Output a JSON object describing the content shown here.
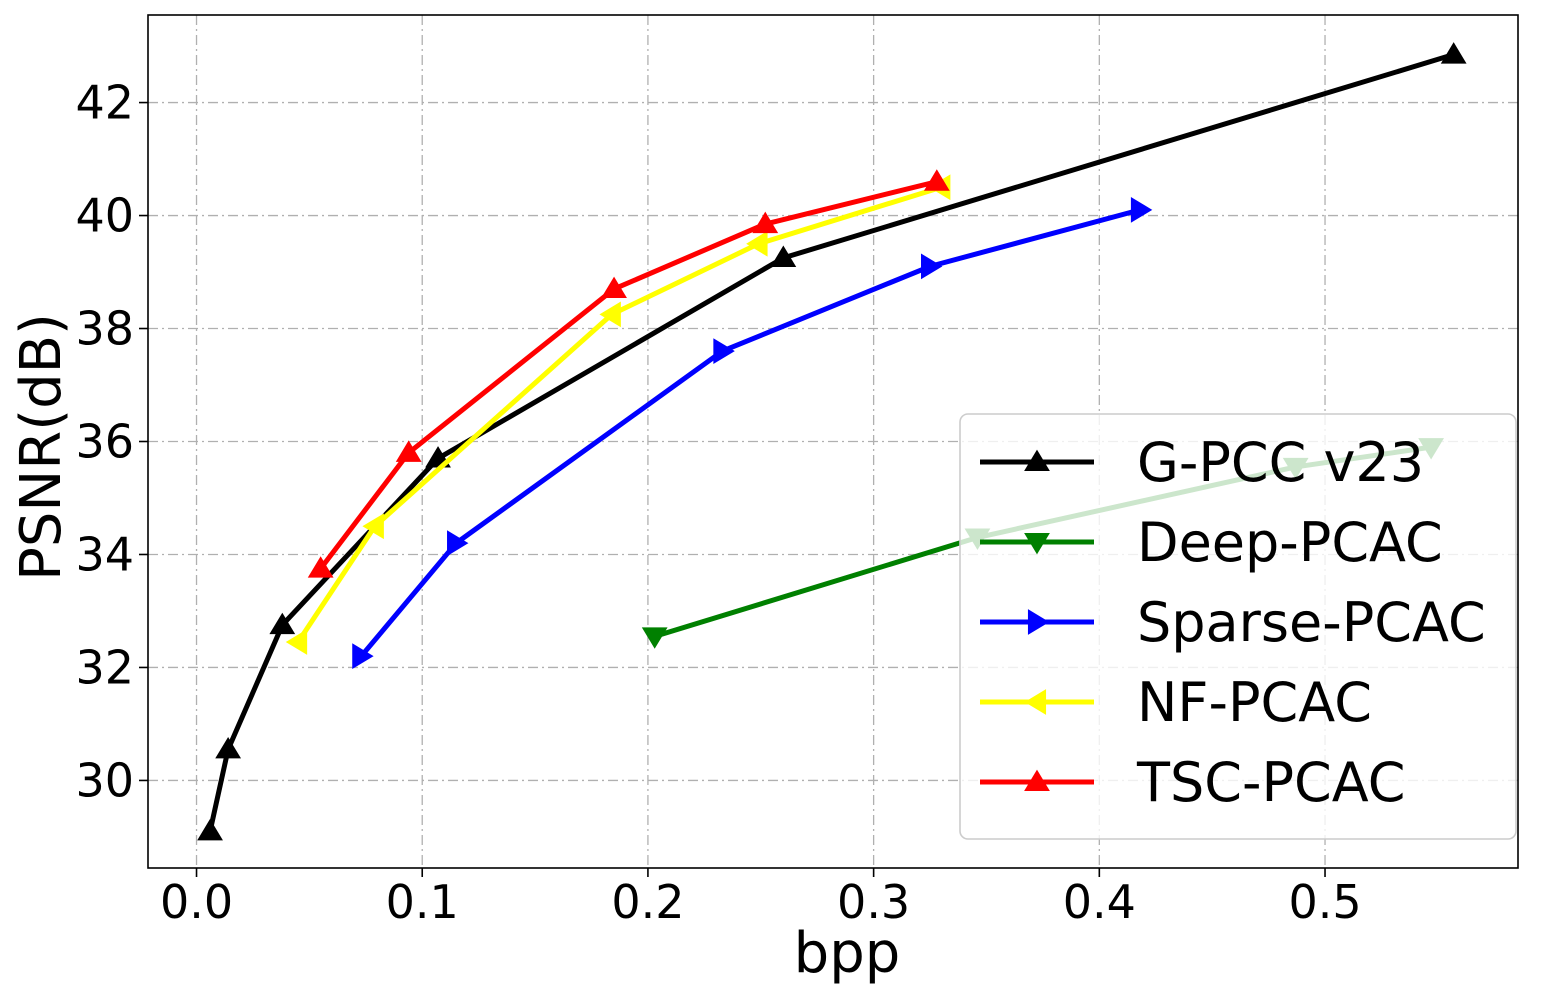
{
  "chart_data": {
    "type": "line",
    "title": "",
    "xlabel": "bpp",
    "ylabel": "PSNR(dB)",
    "xlim": [
      -0.0215,
      0.5855
    ],
    "ylim": [
      28.45,
      43.55
    ],
    "xticks": [
      0.0,
      0.1,
      0.2,
      0.3,
      0.4,
      0.5
    ],
    "xtick_labels": [
      "0.0",
      "0.1",
      "0.2",
      "0.3",
      "0.4",
      "0.5"
    ],
    "yticks": [
      30,
      32,
      34,
      36,
      38,
      40,
      42
    ],
    "ytick_labels": [
      "30",
      "32",
      "34",
      "36",
      "38",
      "40",
      "42"
    ],
    "grid": true,
    "legend_position": "lower-right",
    "series": [
      {
        "name": "G-PCC v23",
        "color": "#000000",
        "marker": "triangle-up",
        "x": [
          0.006,
          0.014,
          0.038,
          0.107,
          0.26,
          0.557
        ],
        "y": [
          29.1,
          30.55,
          32.75,
          35.7,
          39.25,
          42.85
        ]
      },
      {
        "name": "Deep-PCAC",
        "color": "#008000",
        "marker": "triangle-down",
        "x": [
          0.203,
          0.346,
          0.487,
          0.547
        ],
        "y": [
          32.55,
          34.3,
          35.55,
          35.9
        ]
      },
      {
        "name": "Sparse-PCAC",
        "color": "#0000ff",
        "marker": "triangle-right",
        "x": [
          0.073,
          0.115,
          0.233,
          0.325,
          0.418
        ],
        "y": [
          32.2,
          34.2,
          37.6,
          39.1,
          40.1
        ]
      },
      {
        "name": "NF-PCAC",
        "color": "#ffff00",
        "marker": "triangle-left",
        "x": [
          0.045,
          0.079,
          0.184,
          0.249,
          0.33
        ],
        "y": [
          32.45,
          34.5,
          38.25,
          39.5,
          40.5
        ]
      },
      {
        "name": "TSC-PCAC",
        "color": "#ff0000",
        "marker": "triangle-up",
        "x": [
          0.055,
          0.094,
          0.185,
          0.252,
          0.328
        ],
        "y": [
          33.75,
          35.8,
          38.7,
          39.85,
          40.6
        ]
      }
    ]
  }
}
